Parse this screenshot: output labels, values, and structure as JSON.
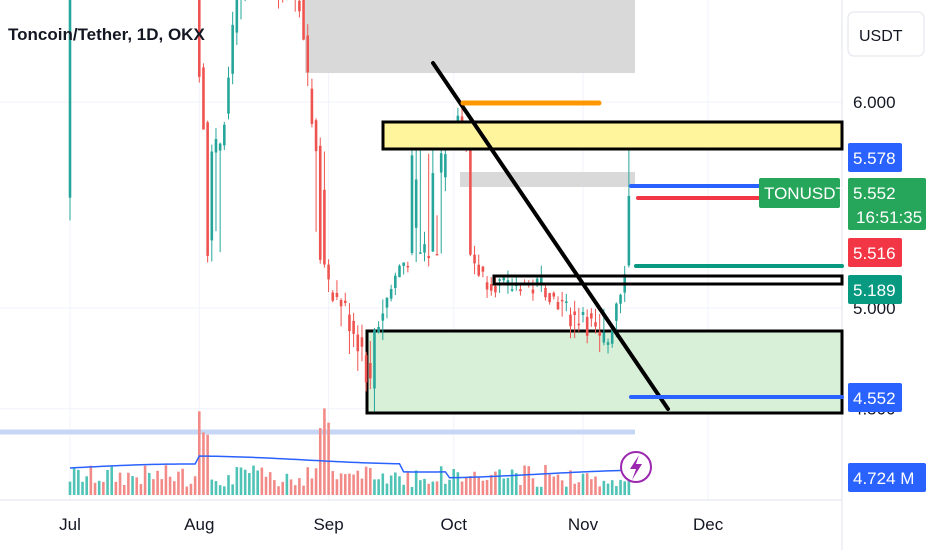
{
  "header": {
    "title": "Toncoin/Tether, 1D, OKX"
  },
  "currency_button": "USDT",
  "chart_data": {
    "type": "candlestick",
    "symbol": "TONUSDT",
    "pair": "Toncoin/Tether",
    "interval": "1D",
    "exchange": "OKX",
    "ylim": [
      4.45,
      6.3
    ],
    "y_axis_ticks": [
      {
        "value": 6.0,
        "label": "6.000"
      },
      {
        "value": 5.0,
        "label": "5.000"
      },
      {
        "value": 4.5,
        "label": "4.500"
      }
    ],
    "x_axis_ticks": [
      {
        "day": 0,
        "label": "Jul"
      },
      {
        "day": 31,
        "label": "Aug"
      },
      {
        "day": 62,
        "label": "Sep"
      },
      {
        "day": 92,
        "label": "Oct"
      },
      {
        "day": 123,
        "label": "Nov"
      },
      {
        "day": 153,
        "label": "Dec"
      }
    ],
    "price_labels": [
      {
        "name": "level-5578",
        "value": 5.578,
        "text": "5.578",
        "color": "#2962ff"
      },
      {
        "name": "last-price",
        "value": 5.552,
        "text": "5.552",
        "countdown": "16:51:35",
        "color": "#26a65b"
      },
      {
        "name": "level-5516",
        "value": 5.516,
        "text": "5.516",
        "color": "#f23645"
      },
      {
        "name": "level-5189",
        "value": 5.189,
        "text": "5.189",
        "color": "#089981"
      },
      {
        "name": "level-4552",
        "value": 4.552,
        "text": "4.552",
        "color": "#2962ff"
      }
    ],
    "symbol_tag": "TONUSDT",
    "volume_label": "4.724 M",
    "volume_color": "#2962ff",
    "series": [
      {
        "name": "price",
        "ohlc_trend_day0_to_day134": [
          [
            0,
            7.0
          ],
          [
            10,
            7.2
          ],
          [
            20,
            6.9
          ],
          [
            30,
            6.7
          ],
          [
            31,
            6.2
          ],
          [
            33,
            5.5
          ],
          [
            36,
            5.7
          ],
          [
            40,
            6.5
          ],
          [
            45,
            6.9
          ],
          [
            50,
            6.6
          ],
          [
            55,
            6.5
          ],
          [
            59,
            5.7
          ],
          [
            62,
            5.2
          ],
          [
            66,
            5.0
          ],
          [
            70,
            4.8
          ],
          [
            72,
            4.6
          ],
          [
            73,
            4.9
          ],
          [
            75,
            5.0
          ],
          [
            79,
            5.4
          ],
          [
            82,
            5.5
          ],
          [
            86,
            5.5
          ],
          [
            89,
            5.6
          ],
          [
            92,
            5.8
          ],
          [
            93,
            5.9
          ],
          [
            96,
            5.5
          ],
          [
            99,
            5.3
          ],
          [
            102,
            5.25
          ],
          [
            105,
            5.2
          ],
          [
            108,
            5.25
          ],
          [
            111,
            5.2
          ],
          [
            113,
            5.25
          ],
          [
            116,
            5.1
          ],
          [
            119,
            5.0
          ],
          [
            121,
            4.95
          ],
          [
            123,
            5.0
          ],
          [
            125,
            4.9
          ],
          [
            127,
            4.8
          ],
          [
            129,
            4.85
          ],
          [
            130,
            4.95
          ],
          [
            132,
            5.2
          ],
          [
            133,
            5.4
          ],
          [
            134,
            5.55
          ]
        ]
      }
    ],
    "annotations": [
      {
        "kind": "zone",
        "name": "grey-supply-zone-top",
        "day_from": 66,
        "day_to": 130,
        "y_top": 6.3,
        "y_bottom": 6.15,
        "fill": "#d9d9d9"
      },
      {
        "kind": "zone",
        "name": "yellow-resistance-zone",
        "day_from": 75,
        "day_to": 180,
        "y_top": 5.77,
        "y_bottom": 5.63,
        "fill": "#fff59d"
      },
      {
        "kind": "zone",
        "name": "grey-zone-mid",
        "day_from": 93,
        "day_to": 130,
        "y_top": 5.58,
        "y_bottom": 5.525,
        "fill": "#d9d9d9"
      },
      {
        "kind": "zone",
        "name": "black-box-mid",
        "day_from": 99,
        "day_to": 180,
        "y_top": 5.2,
        "y_bottom": 5.17,
        "fill": "none"
      },
      {
        "kind": "zone",
        "name": "green-demand-zone",
        "day_from": 73,
        "day_to": 180,
        "y_top": 4.95,
        "y_bottom": 4.5,
        "fill": "#d8efd8"
      },
      {
        "kind": "line",
        "name": "descending-trendline",
        "color": "#000000"
      },
      {
        "kind": "line",
        "name": "orange-line",
        "color": "#ff9800"
      },
      {
        "kind": "line",
        "name": "blue-level-line-5578",
        "color": "#2962ff"
      },
      {
        "kind": "line",
        "name": "red-level-line-5516",
        "color": "#f23645"
      },
      {
        "kind": "line",
        "name": "teal-level-line-5189",
        "color": "#089981"
      },
      {
        "kind": "line",
        "name": "blue-level-line-4552",
        "color": "#2962ff"
      }
    ],
    "grid": true,
    "colors": {
      "up": "#26a69a",
      "down": "#ef5350",
      "up_vol": "#4fc3b5",
      "down_vol": "#f28b88"
    }
  }
}
